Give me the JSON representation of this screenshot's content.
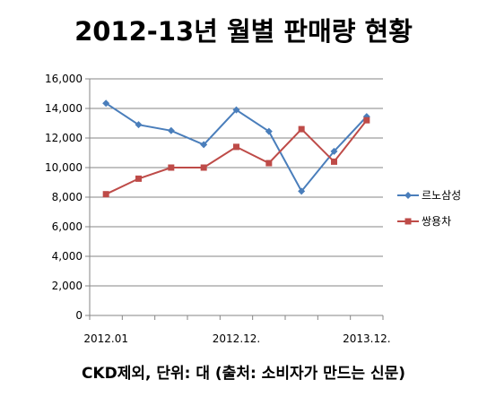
{
  "chart_data": {
    "type": "line",
    "title": "2012-13년 월별 판매량 현황",
    "footnote": "CKD제외, 단위: 대 (출처: 소비자가 만드는 신문)",
    "x": [
      "2012.01",
      "",
      "",
      "",
      "2012.12.",
      "",
      "",
      "",
      "2013.12."
    ],
    "x_tick_labels": [
      "2012.01",
      "2012.12.",
      "2013.12."
    ],
    "ylim": [
      0,
      16000
    ],
    "y_ticks": [
      "0",
      "2,000",
      "4,000",
      "6,000",
      "8,000",
      "10,000",
      "12,000",
      "14,000",
      "16,000"
    ],
    "grid": true,
    "legend_position": "right",
    "series": [
      {
        "name": "르노삼성",
        "color": "#4a7ebb",
        "marker": "diamond",
        "values": [
          14350,
          12900,
          12500,
          11550,
          13900,
          12450,
          8400,
          11100,
          13450
        ]
      },
      {
        "name": "쌍용차",
        "color": "#be4b48",
        "marker": "square",
        "values": [
          8200,
          9250,
          10000,
          10000,
          11400,
          10300,
          12600,
          10400,
          13200
        ]
      }
    ]
  }
}
